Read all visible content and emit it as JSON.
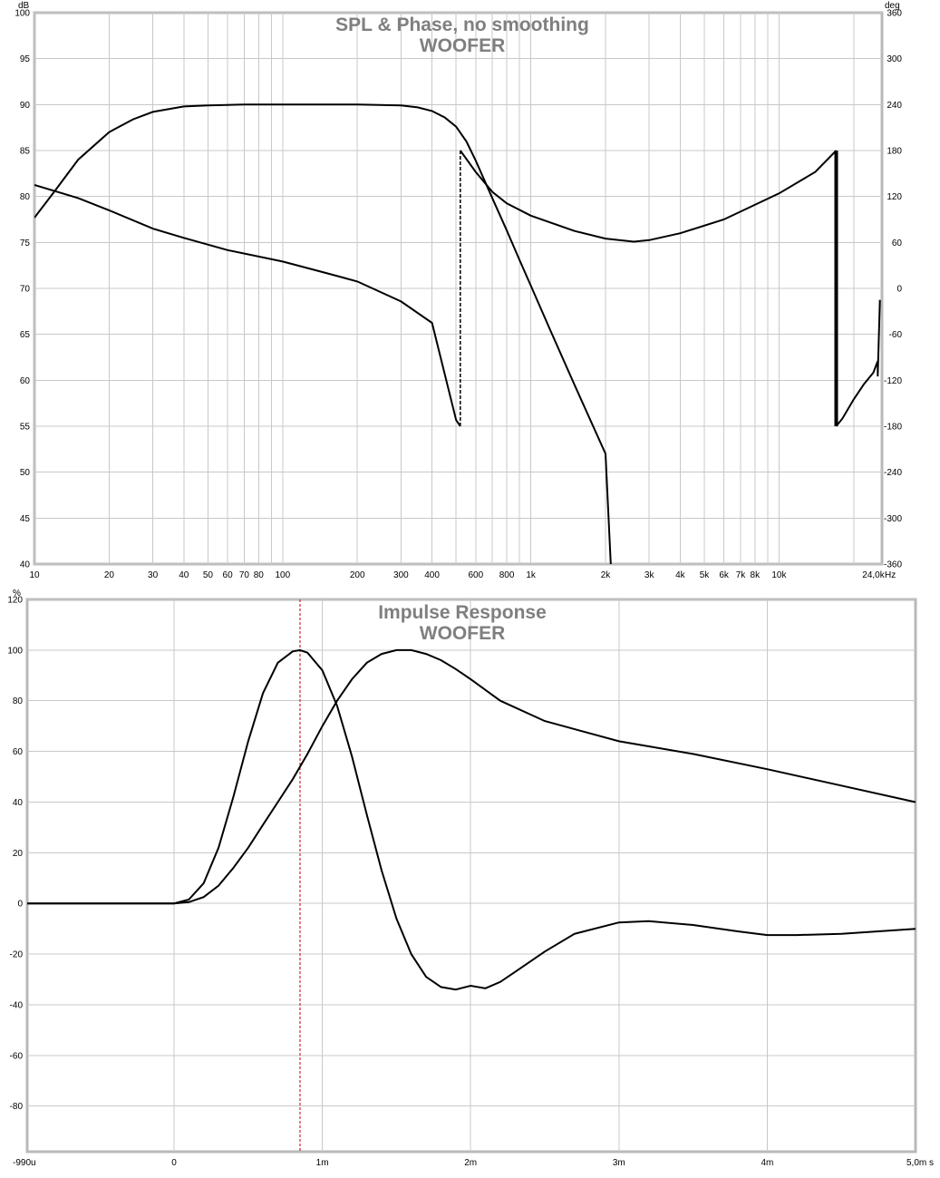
{
  "chart_data": [
    {
      "type": "line",
      "title": "SPL & Phase, no smoothing",
      "subtitle": "WOOFER",
      "x_scale": "log",
      "xlim": [
        10,
        26000
      ],
      "x_unit": "Hz",
      "x_ticks": [
        {
          "v": 10,
          "label": "10"
        },
        {
          "v": 20,
          "label": "20"
        },
        {
          "v": 30,
          "label": "30"
        },
        {
          "v": 40,
          "label": "40"
        },
        {
          "v": 50,
          "label": "50"
        },
        {
          "v": 60,
          "label": "60"
        },
        {
          "v": 70,
          "label": "70"
        },
        {
          "v": 80,
          "label": "80"
        },
        {
          "v": 100,
          "label": "100"
        },
        {
          "v": 200,
          "label": "200"
        },
        {
          "v": 300,
          "label": "300"
        },
        {
          "v": 400,
          "label": "400"
        },
        {
          "v": 600,
          "label": "600"
        },
        {
          "v": 800,
          "label": "800"
        },
        {
          "v": 1000,
          "label": "1k"
        },
        {
          "v": 2000,
          "label": "2k"
        },
        {
          "v": 3000,
          "label": "3k"
        },
        {
          "v": 4000,
          "label": "4k"
        },
        {
          "v": 5000,
          "label": "5k"
        },
        {
          "v": 6000,
          "label": "6k"
        },
        {
          "v": 7000,
          "label": "7k"
        },
        {
          "v": 8000,
          "label": "8k"
        },
        {
          "v": 10000,
          "label": "10k"
        },
        {
          "v": 24000,
          "label": "24,0k"
        }
      ],
      "y_unit": "dB",
      "ylim": [
        40,
        100
      ],
      "y_ticks": [
        "100",
        "95",
        "90",
        "85",
        "80",
        "75",
        "70",
        "65",
        "60",
        "55",
        "50",
        "45",
        "40"
      ],
      "y2_unit": "deg",
      "y2lim": [
        -360,
        360
      ],
      "y2_ticks": [
        "360",
        "300",
        "240",
        "180",
        "120",
        "60",
        "0",
        "-60",
        "-120",
        "-180",
        "-240",
        "-300",
        "-360"
      ],
      "grid": true,
      "series": [
        {
          "axis": "left",
          "x": [
            10,
            12,
            15,
            20,
            25,
            30,
            40,
            50,
            70,
            100,
            200,
            300,
            350,
            400,
            450,
            500,
            550,
            600,
            700,
            800,
            900,
            1000,
            1200,
            1500,
            2000,
            2100
          ],
          "values": [
            77.7,
            80.5,
            84.0,
            87.0,
            88.4,
            89.2,
            89.8,
            89.9,
            90.0,
            90.0,
            90.0,
            89.9,
            89.7,
            89.3,
            88.6,
            87.6,
            86.0,
            83.9,
            79.8,
            76.3,
            73.1,
            70.3,
            65.4,
            59.5,
            52.0,
            40.0
          ]
        },
        {
          "axis": "right",
          "x": [
            10,
            15,
            20,
            30,
            40,
            60,
            100,
            150,
            200,
            300,
            400,
            500,
            520,
            520,
            600,
            700,
            800,
            1000,
            1500,
            2000,
            2600,
            3000,
            4000,
            6000,
            10000,
            14000,
            17000,
            17000,
            18000,
            20000,
            22000,
            24000,
            25000,
            25000,
            25500
          ],
          "values": [
            135,
            118,
            102,
            78,
            66,
            50,
            35,
            20,
            9,
            -17,
            -45,
            -172,
            -180,
            180,
            152,
            126,
            111,
            95,
            75,
            65,
            61,
            63,
            72,
            90,
            124,
            152,
            180,
            -180,
            -170,
            -145,
            -125,
            -110,
            -95,
            -115,
            -15
          ],
          "dashed_segment": [
            520,
            520
          ]
        }
      ]
    },
    {
      "type": "line",
      "title": "Impulse Response",
      "subtitle": "WOOFER",
      "x_unit": "s",
      "xlim": [
        -0.99,
        5.0
      ],
      "x_ticks": [
        {
          "v": -0.99,
          "label": "-990u"
        },
        {
          "v": 0,
          "label": "0"
        },
        {
          "v": 1,
          "label": "1m"
        },
        {
          "v": 2,
          "label": "2m"
        },
        {
          "v": 3,
          "label": "3m"
        },
        {
          "v": 4,
          "label": "4m"
        },
        {
          "v": 5,
          "label": "5,0m s"
        }
      ],
      "y_unit": "%",
      "ylim": [
        -98,
        120
      ],
      "y_ticks": [
        120,
        100,
        80,
        60,
        40,
        20,
        0,
        -20,
        -40,
        -60,
        -80
      ],
      "grid": true,
      "marker_x": 0.85,
      "series": [
        {
          "x": [
            -0.99,
            0,
            0.1,
            0.2,
            0.3,
            0.4,
            0.5,
            0.6,
            0.7,
            0.8,
            0.85,
            0.9,
            1.0,
            1.1,
            1.2,
            1.3,
            1.4,
            1.5,
            1.6,
            1.7,
            1.8,
            1.9,
            2.0,
            2.1,
            2.2,
            2.3,
            2.5,
            2.7,
            3.0,
            3.2,
            3.5,
            3.8,
            4.0,
            4.2,
            4.5,
            5.0
          ],
          "values": [
            0,
            0,
            1.5,
            8,
            22,
            42,
            64,
            83,
            95,
            99.5,
            100,
            99,
            92,
            78,
            58,
            35,
            13,
            -6,
            -20,
            -29,
            -33,
            -34,
            -32.5,
            -33.5,
            -31,
            -27,
            -19,
            -12,
            -7.5,
            -7,
            -8.5,
            -11,
            -12.5,
            -12.5,
            -12,
            -10
          ]
        },
        {
          "x": [
            -0.99,
            0,
            0.1,
            0.2,
            0.3,
            0.4,
            0.5,
            0.6,
            0.7,
            0.8,
            0.9,
            1.0,
            1.1,
            1.2,
            1.3,
            1.4,
            1.5,
            1.6,
            1.7,
            1.8,
            1.9,
            2.0,
            2.2,
            2.5,
            3.0,
            3.5,
            4.0,
            4.5,
            5.0
          ],
          "values": [
            0,
            0,
            0.5,
            2.5,
            7,
            14,
            22,
            31,
            40,
            49,
            59,
            70,
            80,
            88.5,
            95,
            98.5,
            100,
            100,
            98.5,
            96,
            92.5,
            88.5,
            80,
            72,
            64,
            59,
            53,
            46.5,
            40
          ]
        }
      ]
    }
  ]
}
